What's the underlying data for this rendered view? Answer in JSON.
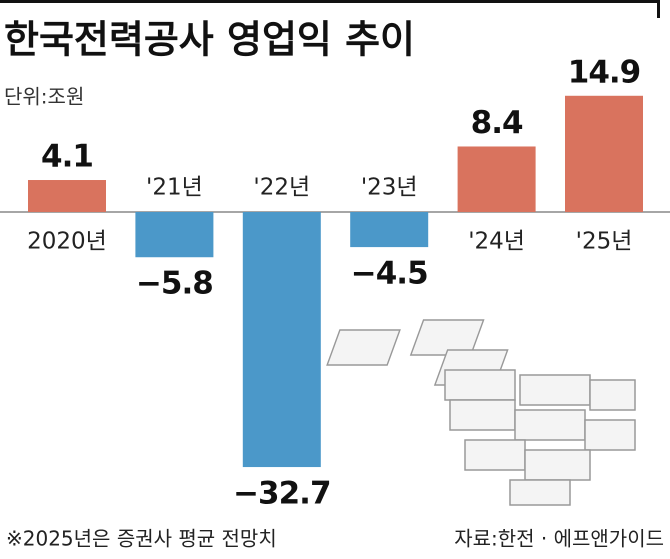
{
  "chart_data": {
    "type": "bar",
    "title": "한국전력공사 영업익 추이",
    "subtitle": "단위:조원",
    "categories": [
      "2020년",
      "'21년",
      "'22년",
      "'23년",
      "'24년",
      "'25년"
    ],
    "values": [
      4.1,
      -5.8,
      -32.7,
      -4.5,
      8.4,
      14.9
    ],
    "value_labels": [
      "4.1",
      "−5.8",
      "−32.7",
      "−4.5",
      "8.4",
      "14.9"
    ],
    "colors": {
      "positive": "#d9735e",
      "negative": "#4b98c9"
    },
    "note": "※2025년은 증권사 평균 전망치",
    "source": "자료:한전 · 에프앤가이드"
  }
}
